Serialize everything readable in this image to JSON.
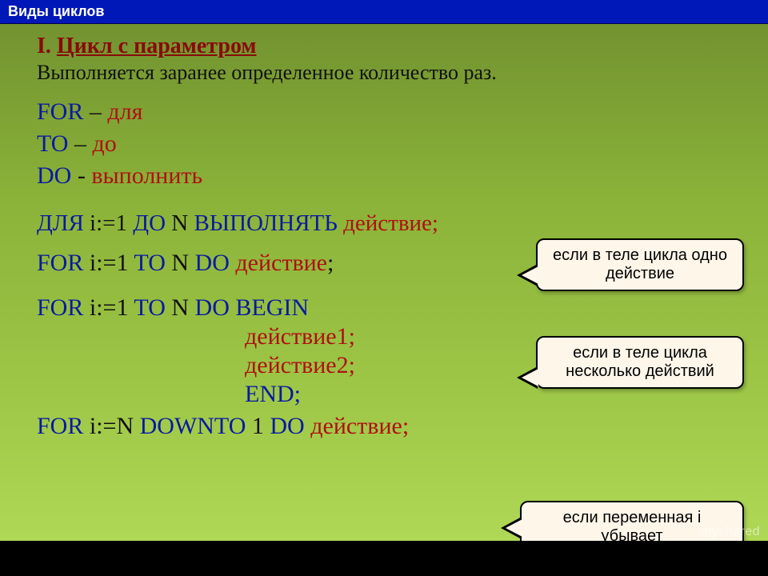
{
  "titlebar": "Виды циклов",
  "heading": {
    "num": "I.",
    "title": "Цикл с параметром"
  },
  "subtitle": "Выполняется заранее определенное количество раз.",
  "kw": {
    "for": "FOR",
    "for_tr": "для",
    "to": "TO",
    "to_tr": "до",
    "do": "DO",
    "do_tr": "выполнить",
    "dash": "–",
    "hyphen": "-"
  },
  "line_ru": {
    "dlya": "ДЛЯ",
    "ivar": "i:=1",
    "do_word": "ДО",
    "n": "N",
    "vypolnyat": "ВЫПОЛНЯТЬ",
    "action": "действие;"
  },
  "line1": {
    "for": "FOR",
    "ivar": "i:=1",
    "to": "TO",
    "n": "N",
    "do": "DO",
    "action": "действие",
    "semi": ";"
  },
  "line2": {
    "for": "FOR",
    "ivar": "i:=1",
    "to": "TO",
    "n": "N",
    "do": "DO",
    "begin": "BEGIN",
    "act1": "действие1;",
    "act2": "действие2;",
    "end": "END;"
  },
  "line3": {
    "for": "FOR",
    "ivar": "i:=N",
    "downto": "DOWNTO",
    "one": "1",
    "do": "DO",
    "action": "действие;"
  },
  "callouts": {
    "c1": "если в теле цикла одно действие",
    "c2": "если в теле цикла несколько действий",
    "c3": "если переменная i убывает"
  },
  "watermark": "myshared",
  "colors": {
    "blue": "#0a1aa0",
    "red": "#b01010",
    "heading": "#8a0a0a",
    "callout_bg": "#fff6ea",
    "titlebar_bg": "#0018b8"
  }
}
